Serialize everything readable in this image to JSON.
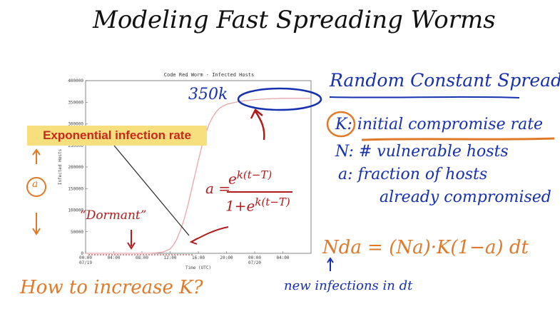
{
  "page": {
    "title": "Modeling Fast Spreading Worms",
    "right_heading": "Random Constant Spread",
    "definitions": [
      {
        "symbol": "K",
        "text": ": initial compromise rate"
      },
      {
        "symbol": "N",
        "text": ": # vulnerable hosts"
      },
      {
        "symbol": "a",
        "text": ": fraction of hosts"
      },
      {
        "symbol": "",
        "text": "already compromised"
      }
    ],
    "rate_equation": "Nda = (Na)·K(1−a) dt",
    "new_infections": "new infections in dt",
    "question": "How to increase K?",
    "callout": "Exponential infection rate",
    "dormant": "“Dormant”",
    "peak_label": "350k",
    "formula": {
      "lhs": "a =",
      "num_base": "e",
      "num_exp": "k(t−T)",
      "den_base": "1+e",
      "den_exp": "k(t−T)"
    },
    "circled_a": "a"
  },
  "chart_data": {
    "type": "line",
    "title": "Code Red Worm - Infected Hosts",
    "xlabel": "Time (UTC)",
    "ylabel": "Infected Hosts",
    "x_ticks": [
      "00:00\n07/19",
      "04:00",
      "08:00",
      "12:00",
      "16:00",
      "20:00",
      "00:00\n07/20",
      "04:00"
    ],
    "x_hours": [
      0,
      4,
      8,
      12,
      16,
      20,
      24,
      28
    ],
    "ylim": [
      0,
      400000
    ],
    "y_ticks": [
      0,
      50000,
      100000,
      150000,
      200000,
      250000,
      300000,
      350000,
      400000
    ],
    "y_tick_labels": [
      "0",
      "50000",
      "100000",
      "150000",
      "200000",
      "250000",
      "300000",
      "350000",
      "400000"
    ],
    "xlim": [
      0,
      32
    ],
    "series": [
      {
        "color": "#e6a7a7",
        "x": [
          0,
          2,
          4,
          6,
          8,
          9,
          10,
          11,
          12,
          12.5,
          13,
          13.5,
          14,
          14.5,
          15,
          15.5,
          16,
          16.5,
          17,
          17.5,
          18,
          18.5,
          19,
          19.5,
          20,
          21,
          22,
          23,
          24,
          25,
          26,
          27,
          28,
          29,
          30,
          31,
          32
        ],
        "y": [
          0,
          0,
          0,
          0,
          0,
          0,
          1000,
          3000,
          10000,
          20000,
          35000,
          55000,
          80000,
          110000,
          145000,
          180000,
          215000,
          248000,
          275000,
          298000,
          315000,
          327000,
          336000,
          341000,
          345000,
          349000,
          352000,
          354000,
          356000,
          357000,
          358000,
          358500,
          359000,
          359000,
          359000,
          359000,
          359000
        ]
      }
    ]
  },
  "colors": {
    "blue_ink": "#1630b0",
    "red_ink": "#b01c1c",
    "orange_ink": "#e07a2a",
    "callout_bg": "#f6df7c",
    "callout_fg": "#c8281c",
    "curve": "#e6a7a7"
  }
}
